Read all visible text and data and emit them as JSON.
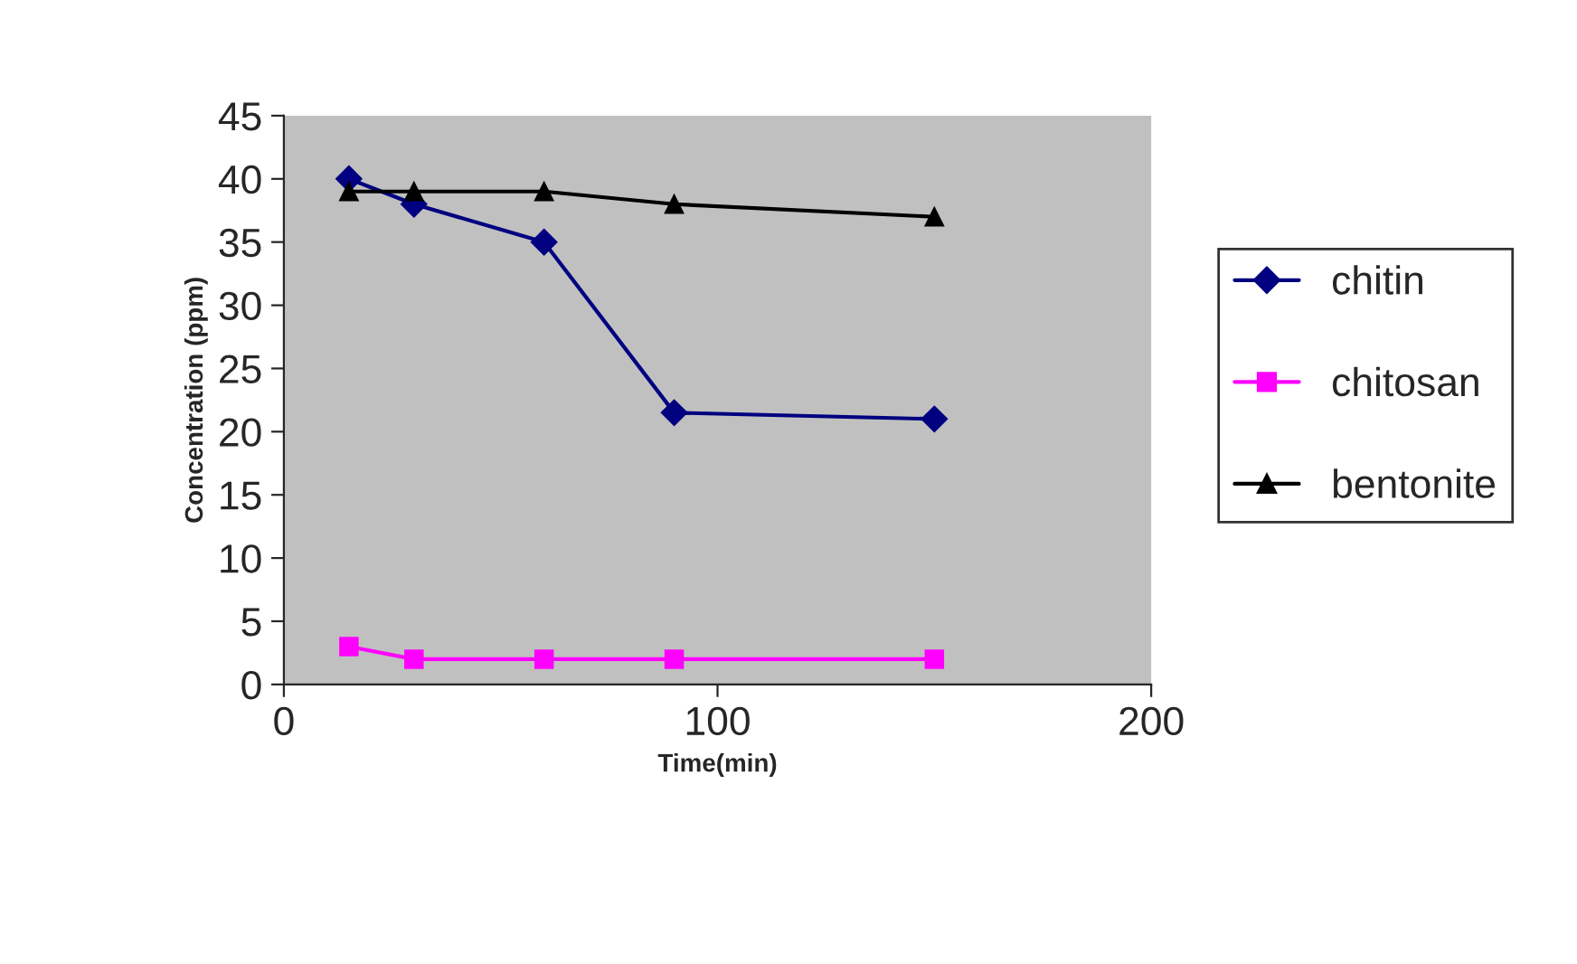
{
  "chart_data": {
    "type": "line",
    "xlabel": "Time(min)",
    "ylabel": "Concentration (ppm)",
    "x": [
      15,
      30,
      60,
      90,
      150
    ],
    "series": [
      {
        "name": "chitin",
        "color": "#000080",
        "marker": "diamond",
        "values": [
          40,
          38,
          35,
          21.5,
          21
        ]
      },
      {
        "name": "chitosan",
        "color": "#ff00ff",
        "marker": "square",
        "values": [
          3,
          2,
          2,
          2,
          2
        ]
      },
      {
        "name": "bentonite",
        "color": "#000000",
        "marker": "triangle",
        "values": [
          39,
          39,
          39,
          38,
          37
        ]
      }
    ],
    "xlim": [
      0,
      200
    ],
    "xticks": [
      0,
      100,
      200
    ],
    "ylim": [
      0,
      45
    ],
    "yticks": [
      0,
      5,
      10,
      15,
      20,
      25,
      30,
      35,
      40,
      45
    ],
    "grid": false,
    "legend": "right"
  }
}
